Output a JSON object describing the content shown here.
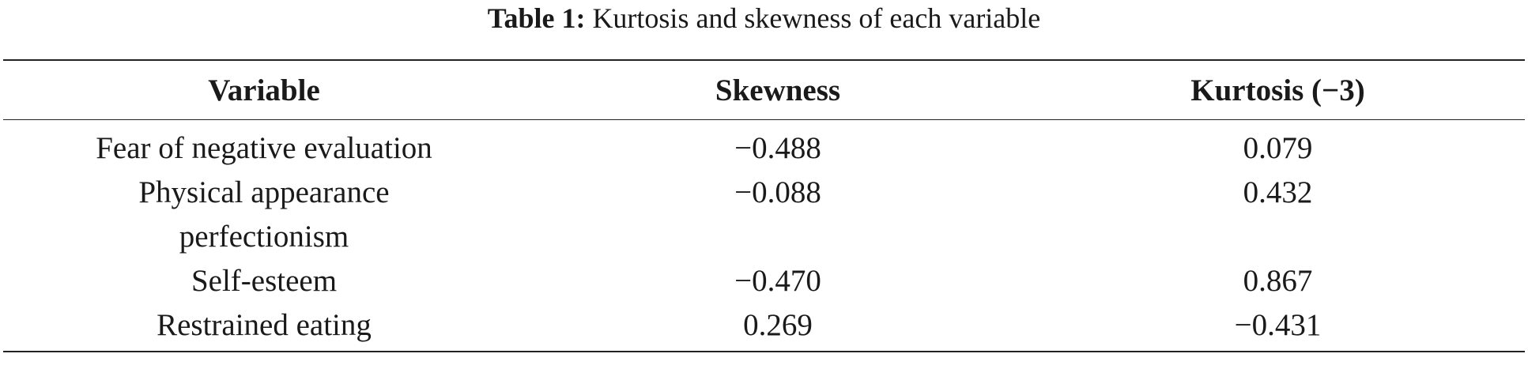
{
  "title": {
    "label": "Table 1:",
    "text": "Kurtosis and skewness of each variable"
  },
  "table": {
    "header": [
      "Variable",
      "Skewness",
      "Kurtosis (−3)"
    ],
    "rows": [
      [
        "Fear of negative evaluation",
        "−0.488",
        "0.079"
      ],
      [
        "Physical appearance perfectionism",
        "−0.088",
        "0.432"
      ],
      [
        "Self-esteem",
        "−0.470",
        "0.867"
      ],
      [
        "Restrained eating",
        "0.269",
        "−0.431"
      ]
    ]
  }
}
